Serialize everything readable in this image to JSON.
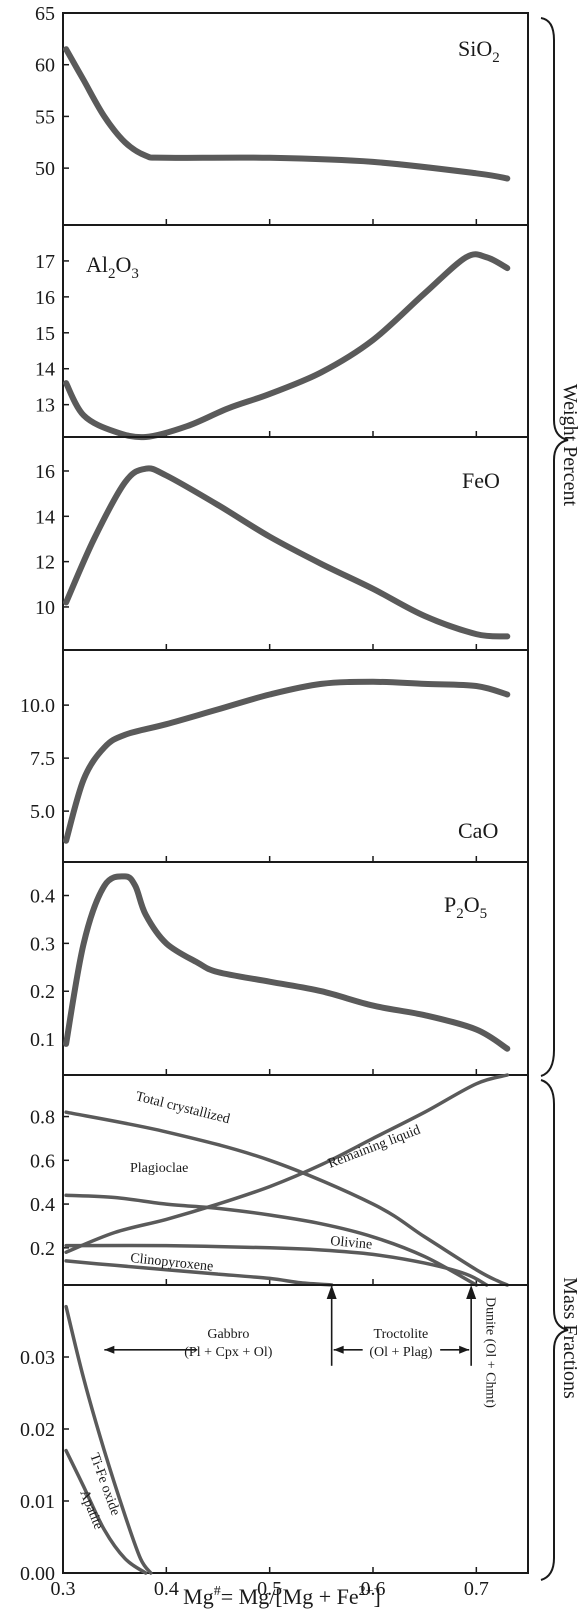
{
  "colors": {
    "curve": "#5a5a5a",
    "frame": "#1a1a1a",
    "text": "#1a1a1a",
    "background": "#ffffff"
  },
  "chart_data": [
    {
      "type": "line",
      "title": "SiO2",
      "label_main": "SiO",
      "label_sub1": "2",
      "xlim": [
        0.3,
        0.75
      ],
      "ylim": [
        44.5,
        65
      ],
      "yticks": [
        50,
        55,
        60,
        65
      ],
      "series": [
        {
          "x": [
            0.303,
            0.32,
            0.34,
            0.36,
            0.38,
            0.4,
            0.5,
            0.6,
            0.7,
            0.73
          ],
          "y": [
            61.5,
            58.5,
            55.0,
            52.5,
            51.2,
            51.0,
            51.0,
            50.6,
            49.5,
            49.0
          ]
        }
      ]
    },
    {
      "type": "line",
      "title": "Al2O3",
      "label_main": "Al",
      "label_sub1": "2",
      "label_mid": "O",
      "label_sub2": "3",
      "xlim": [
        0.3,
        0.75
      ],
      "ylim": [
        12.1,
        18
      ],
      "yticks": [
        13,
        14,
        15,
        16,
        17
      ],
      "series": [
        {
          "x": [
            0.303,
            0.32,
            0.35,
            0.38,
            0.42,
            0.46,
            0.5,
            0.55,
            0.6,
            0.65,
            0.69,
            0.71,
            0.73
          ],
          "y": [
            13.6,
            12.7,
            12.25,
            12.1,
            12.4,
            12.9,
            13.3,
            13.9,
            14.8,
            16.1,
            17.1,
            17.1,
            16.8
          ]
        }
      ]
    },
    {
      "type": "line",
      "title": "FeO",
      "xlim": [
        0.3,
        0.75
      ],
      "ylim": [
        8.1,
        17.5
      ],
      "yticks": [
        10,
        12,
        14,
        16
      ],
      "series": [
        {
          "x": [
            0.303,
            0.33,
            0.36,
            0.38,
            0.4,
            0.45,
            0.5,
            0.55,
            0.6,
            0.65,
            0.7,
            0.73
          ],
          "y": [
            10.2,
            13.0,
            15.5,
            16.1,
            15.8,
            14.5,
            13.1,
            11.9,
            10.8,
            9.6,
            8.8,
            8.7
          ]
        }
      ]
    },
    {
      "type": "line",
      "title": "CaO",
      "xlim": [
        0.3,
        0.75
      ],
      "ylim": [
        2.6,
        12.6
      ],
      "yticks": [
        5.0,
        7.5,
        10.0
      ],
      "yticklabels": [
        "5.0",
        "7.5",
        "10.0"
      ],
      "series": [
        {
          "x": [
            0.303,
            0.32,
            0.34,
            0.36,
            0.4,
            0.45,
            0.5,
            0.55,
            0.6,
            0.65,
            0.7,
            0.73
          ],
          "y": [
            3.6,
            6.5,
            8.0,
            8.6,
            9.1,
            9.8,
            10.5,
            11.0,
            11.1,
            11.0,
            10.9,
            10.5
          ]
        }
      ]
    },
    {
      "type": "line",
      "title": "P2O5",
      "label_main": "P",
      "label_sub1": "2",
      "label_mid": "O",
      "label_sub2": "5",
      "xlim": [
        0.3,
        0.75
      ],
      "ylim": [
        0.025,
        0.47
      ],
      "yticks": [
        0.1,
        0.2,
        0.3,
        0.4
      ],
      "series": [
        {
          "x": [
            0.303,
            0.32,
            0.34,
            0.36,
            0.37,
            0.38,
            0.4,
            0.43,
            0.45,
            0.5,
            0.55,
            0.6,
            0.65,
            0.7,
            0.73
          ],
          "y": [
            0.09,
            0.3,
            0.42,
            0.44,
            0.42,
            0.36,
            0.3,
            0.26,
            0.24,
            0.22,
            0.2,
            0.17,
            0.15,
            0.12,
            0.08
          ]
        }
      ]
    },
    {
      "type": "line",
      "title": "",
      "xlim": [
        0.3,
        0.75
      ],
      "ylim": [
        0.03,
        0.99
      ],
      "yticks": [
        0.2,
        0.4,
        0.6,
        0.8
      ],
      "series": [
        {
          "name": "Total crystallized",
          "x": [
            0.303,
            0.4,
            0.5,
            0.6,
            0.65,
            0.7,
            0.72,
            0.73
          ],
          "y": [
            0.82,
            0.73,
            0.6,
            0.4,
            0.25,
            0.1,
            0.05,
            0.03
          ]
        },
        {
          "name": "Remaining liquid",
          "x": [
            0.303,
            0.35,
            0.4,
            0.45,
            0.5,
            0.55,
            0.6,
            0.65,
            0.7,
            0.73
          ],
          "y": [
            0.18,
            0.27,
            0.33,
            0.4,
            0.48,
            0.58,
            0.7,
            0.82,
            0.95,
            0.99
          ]
        },
        {
          "name": "Plagioclae",
          "x": [
            0.303,
            0.35,
            0.4,
            0.45,
            0.5,
            0.55,
            0.6,
            0.65,
            0.7
          ],
          "y": [
            0.44,
            0.43,
            0.4,
            0.38,
            0.35,
            0.31,
            0.25,
            0.16,
            0.03
          ]
        },
        {
          "name": "Olivine",
          "x": [
            0.303,
            0.4,
            0.5,
            0.55,
            0.6,
            0.65,
            0.69,
            0.71
          ],
          "y": [
            0.21,
            0.21,
            0.2,
            0.19,
            0.17,
            0.13,
            0.08,
            0.03
          ]
        },
        {
          "name": "Clinopyroxene",
          "x": [
            0.303,
            0.35,
            0.4,
            0.45,
            0.5,
            0.53,
            0.56
          ],
          "y": [
            0.14,
            0.12,
            0.1,
            0.08,
            0.06,
            0.04,
            0.03
          ]
        }
      ]
    },
    {
      "type": "line",
      "title": "",
      "xlim": [
        0.3,
        0.75
      ],
      "ylim": [
        0.0,
        0.04
      ],
      "yticks": [
        0.0,
        0.01,
        0.02,
        0.03
      ],
      "yticklabels": [
        "0.00",
        "0.01",
        "0.02",
        "0.03"
      ],
      "xticks": [
        0.3,
        0.4,
        0.5,
        0.6,
        0.7
      ],
      "xticklabels": [
        "0.3",
        "0.4",
        "0.5",
        "0.6",
        "0.7"
      ],
      "series": [
        {
          "name": "Ti-Fe oxide",
          "x": [
            0.303,
            0.32,
            0.34,
            0.36,
            0.375,
            0.385
          ],
          "y": [
            0.037,
            0.027,
            0.017,
            0.008,
            0.002,
            0.0
          ]
        },
        {
          "name": "Apatite",
          "x": [
            0.303,
            0.32,
            0.34,
            0.36,
            0.38
          ],
          "y": [
            0.017,
            0.012,
            0.006,
            0.002,
            0.0
          ]
        }
      ],
      "annotations": [
        {
          "text_line1": "Gabbro",
          "text_line2": "(Pl + Cpx + Ol)",
          "x": 0.46,
          "y": 0.031,
          "x_start": 0.34,
          "x_end": 0.56
        },
        {
          "text_line1": "Troctolite",
          "text_line2": "(Ol + Plag)",
          "x": 0.627,
          "y": 0.031,
          "x_start": 0.56,
          "x_end": 0.695
        },
        {
          "text": "Dunite (Ol + Chmt)",
          "x": 0.71,
          "y": 0.021
        }
      ]
    }
  ],
  "xlabel_parts": [
    "Mg",
    "#",
    "= Mg/[Mg + Fe",
    "2+",
    "]"
  ],
  "group_labels": {
    "weight": "Weight Percent",
    "mass": "Mass Fractions"
  }
}
